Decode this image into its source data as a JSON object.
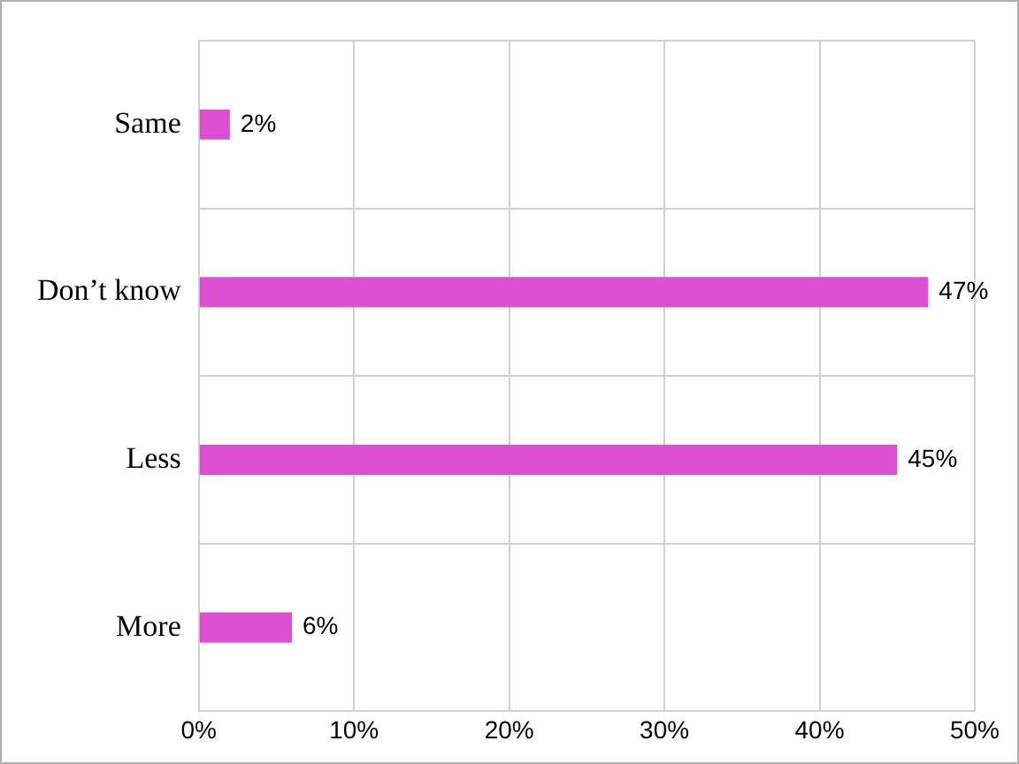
{
  "chart_data": {
    "type": "bar",
    "orientation": "horizontal",
    "categories": [
      "Same",
      "Don’t know",
      "Less",
      "More"
    ],
    "values": [
      2,
      47,
      45,
      6
    ],
    "value_labels": [
      "2%",
      "47%",
      "45%",
      "6%"
    ],
    "color": "#dd4fd1",
    "xlim": [
      0,
      50
    ],
    "xticks": [
      {
        "value": 0,
        "label": "0%"
      },
      {
        "value": 10,
        "label": "10%"
      },
      {
        "value": 20,
        "label": "20%"
      },
      {
        "value": 30,
        "label": "30%"
      },
      {
        "value": 40,
        "label": "40%"
      },
      {
        "value": 50,
        "label": "50%"
      }
    ],
    "grid": true,
    "legend": false
  }
}
